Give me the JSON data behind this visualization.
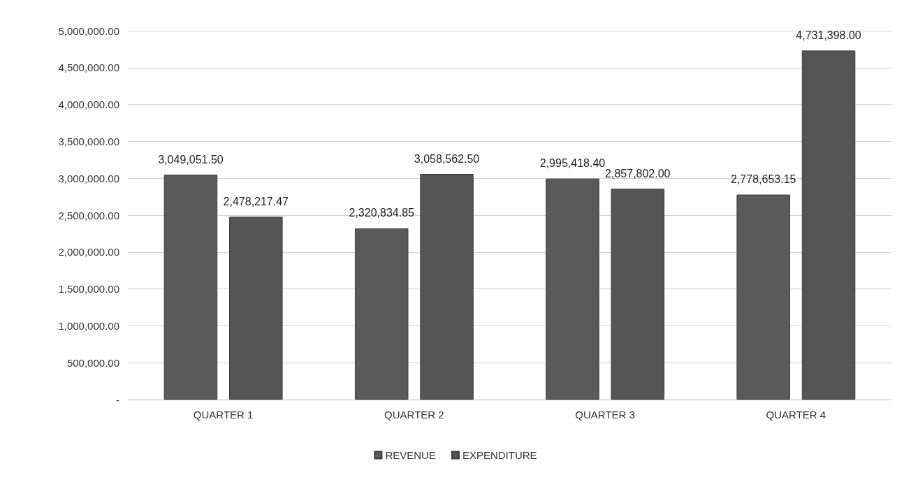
{
  "chart_data": {
    "type": "bar",
    "categories": [
      "QUARTER 1",
      "QUARTER 2",
      "QUARTER 3",
      "QUARTER 4"
    ],
    "series": [
      {
        "name": "REVENUE",
        "color": "#5a5a5a",
        "values": [
          3049051.5,
          2320834.85,
          2995418.4,
          2778653.15
        ],
        "value_labels": [
          "3,049,051.50",
          "2,320,834.85",
          "2,995,418.40",
          "2,778,653.15"
        ]
      },
      {
        "name": "EXPENDITURE",
        "color": "#555555",
        "values": [
          2478217.47,
          3058562.5,
          2857802,
          4731398
        ],
        "value_labels": [
          "2,478,217.47",
          "3,058,562.50",
          "2,857,802.00",
          "4,731,398.00"
        ]
      }
    ],
    "ylim": [
      0,
      5000000
    ],
    "yticks": [
      {
        "value": 0,
        "label": "-"
      },
      {
        "value": 500000,
        "label": "500,000.00"
      },
      {
        "value": 1000000,
        "label": "1,000,000.00"
      },
      {
        "value": 1500000,
        "label": "1,500,000.00"
      },
      {
        "value": 2000000,
        "label": "2,000,000.00"
      },
      {
        "value": 2500000,
        "label": "2,500,000.00"
      },
      {
        "value": 3000000,
        "label": "3,000,000.00"
      },
      {
        "value": 3500000,
        "label": "3,500,000.00"
      },
      {
        "value": 4000000,
        "label": "4,000,000.00"
      },
      {
        "value": 4500000,
        "label": "4,500,000.00"
      },
      {
        "value": 5000000,
        "label": "5,000,000.00"
      }
    ],
    "grid": "y",
    "legend": "bottom"
  }
}
